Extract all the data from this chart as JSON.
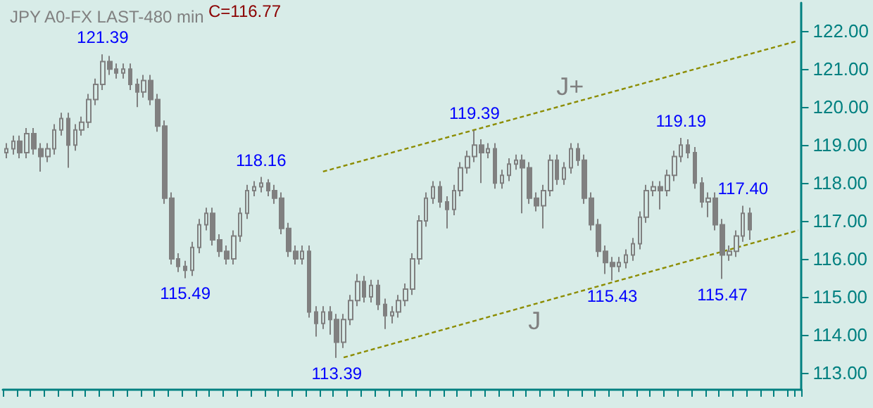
{
  "chart_data": {
    "type": "candlestick",
    "title": "JPY A0-FX LAST-480 min",
    "categories": [
      null,
      null,
      null,
      null,
      null,
      null,
      null,
      null,
      null,
      null,
      null,
      null,
      null,
      null,
      null,
      null,
      null,
      null,
      null,
      null,
      null,
      null,
      null,
      null,
      null,
      null,
      null,
      null,
      null,
      null,
      null,
      null,
      null,
      null,
      null,
      null,
      null,
      null,
      null,
      null,
      null,
      null,
      null,
      null,
      null,
      null,
      null,
      null,
      null,
      null,
      null,
      null,
      null,
      null,
      null,
      null,
      null,
      null,
      null,
      null,
      null,
      null,
      null,
      null,
      null,
      null,
      null,
      null,
      null,
      null,
      null,
      null,
      null,
      null,
      null,
      null,
      null,
      null,
      null,
      null,
      null,
      null,
      null,
      null,
      null,
      null,
      null,
      null,
      null,
      null,
      null,
      null,
      null,
      null,
      null,
      null,
      null,
      null,
      null,
      null,
      null,
      null,
      null,
      null,
      null,
      null,
      null,
      null,
      null,
      null,
      null,
      null,
      null,
      null,
      null,
      null
    ],
    "color": "#808080",
    "ohlc": [
      [
        118.8,
        119.05,
        118.65,
        118.9
      ],
      [
        118.9,
        119.25,
        118.75,
        119.1
      ],
      [
        119.1,
        119.25,
        118.65,
        118.8
      ],
      [
        118.8,
        119.45,
        118.65,
        119.3
      ],
      [
        119.3,
        119.45,
        118.75,
        118.9
      ],
      [
        118.9,
        119.05,
        118.3,
        118.7
      ],
      [
        118.7,
        119.05,
        118.55,
        118.9
      ],
      [
        118.9,
        119.55,
        118.75,
        119.4
      ],
      [
        119.4,
        119.85,
        119.25,
        119.7
      ],
      [
        119.7,
        119.85,
        118.4,
        119.0
      ],
      [
        119.0,
        119.55,
        118.85,
        119.4
      ],
      [
        119.4,
        119.75,
        119.25,
        119.6
      ],
      [
        119.6,
        120.35,
        119.45,
        120.2
      ],
      [
        120.2,
        120.75,
        120.05,
        120.6
      ],
      [
        120.6,
        121.39,
        120.45,
        121.2
      ],
      [
        121.2,
        121.35,
        120.85,
        121.0
      ],
      [
        121.0,
        121.15,
        120.75,
        120.9
      ],
      [
        120.9,
        121.15,
        120.75,
        121.0
      ],
      [
        121.0,
        121.15,
        120.45,
        120.6
      ],
      [
        120.6,
        120.75,
        120.0,
        120.4
      ],
      [
        120.4,
        120.85,
        120.25,
        120.7
      ],
      [
        120.7,
        120.85,
        120.05,
        120.2
      ],
      [
        120.2,
        120.35,
        119.35,
        119.5
      ],
      [
        119.5,
        119.65,
        117.45,
        117.6
      ],
      [
        117.6,
        117.75,
        115.85,
        116.0
      ],
      [
        116.0,
        116.15,
        115.65,
        115.8
      ],
      [
        115.8,
        115.95,
        115.49,
        115.7
      ],
      [
        115.7,
        116.45,
        115.55,
        116.3
      ],
      [
        116.3,
        117.05,
        116.15,
        116.9
      ],
      [
        116.9,
        117.35,
        116.75,
        117.2
      ],
      [
        117.2,
        117.35,
        116.35,
        116.5
      ],
      [
        116.5,
        116.65,
        116.05,
        116.2
      ],
      [
        116.2,
        116.35,
        115.85,
        116.0
      ],
      [
        116.0,
        116.75,
        115.85,
        116.6
      ],
      [
        116.6,
        117.35,
        116.45,
        117.2
      ],
      [
        117.2,
        117.95,
        117.05,
        117.8
      ],
      [
        117.8,
        118.05,
        117.65,
        117.9
      ],
      [
        117.9,
        118.16,
        117.75,
        118.0
      ],
      [
        118.0,
        118.1,
        117.65,
        117.8
      ],
      [
        117.8,
        117.95,
        117.45,
        117.6
      ],
      [
        117.6,
        117.75,
        116.65,
        116.8
      ],
      [
        116.8,
        116.95,
        116.05,
        116.2
      ],
      [
        116.2,
        116.35,
        115.85,
        116.0
      ],
      [
        116.0,
        116.35,
        115.85,
        116.2
      ],
      [
        116.2,
        116.35,
        114.45,
        114.6
      ],
      [
        114.6,
        114.75,
        113.95,
        114.3
      ],
      [
        114.3,
        114.75,
        114.15,
        114.6
      ],
      [
        114.6,
        114.75,
        114.0,
        114.4
      ],
      [
        114.4,
        114.55,
        113.39,
        113.8
      ],
      [
        113.8,
        114.55,
        113.65,
        114.4
      ],
      [
        114.4,
        115.05,
        114.25,
        114.9
      ],
      [
        114.9,
        115.6,
        114.75,
        115.4
      ],
      [
        115.4,
        115.55,
        114.85,
        115.0
      ],
      [
        115.0,
        115.45,
        114.85,
        115.3
      ],
      [
        115.3,
        115.45,
        114.65,
        114.8
      ],
      [
        114.8,
        114.95,
        114.15,
        114.5
      ],
      [
        114.5,
        114.75,
        114.3,
        114.6
      ],
      [
        114.6,
        115.05,
        114.45,
        114.9
      ],
      [
        114.9,
        115.35,
        114.75,
        115.2
      ],
      [
        115.2,
        116.15,
        115.05,
        116.0
      ],
      [
        116.0,
        117.15,
        115.85,
        117.0
      ],
      [
        117.0,
        117.75,
        116.85,
        117.6
      ],
      [
        117.6,
        118.05,
        117.45,
        117.9
      ],
      [
        117.9,
        118.05,
        117.35,
        117.5
      ],
      [
        117.5,
        117.65,
        116.8,
        117.3
      ],
      [
        117.3,
        117.95,
        117.15,
        117.8
      ],
      [
        117.8,
        118.55,
        117.65,
        118.4
      ],
      [
        118.4,
        118.85,
        118.25,
        118.7
      ],
      [
        118.7,
        119.39,
        118.55,
        119.0
      ],
      [
        119.0,
        119.15,
        118.0,
        118.8
      ],
      [
        118.8,
        119.05,
        118.65,
        118.9
      ],
      [
        118.9,
        119.05,
        117.85,
        118.0
      ],
      [
        118.0,
        118.35,
        117.85,
        118.2
      ],
      [
        118.2,
        118.65,
        118.05,
        118.5
      ],
      [
        118.5,
        118.75,
        118.35,
        118.6
      ],
      [
        118.6,
        118.75,
        117.2,
        118.4
      ],
      [
        118.4,
        118.55,
        117.45,
        117.6
      ],
      [
        117.6,
        117.75,
        117.25,
        117.4
      ],
      [
        117.4,
        117.95,
        116.8,
        117.8
      ],
      [
        117.8,
        118.75,
        117.65,
        118.6
      ],
      [
        118.6,
        118.75,
        117.95,
        118.1
      ],
      [
        118.1,
        118.55,
        117.95,
        118.4
      ],
      [
        118.4,
        119.05,
        118.25,
        118.9
      ],
      [
        118.9,
        119.05,
        118.45,
        118.6
      ],
      [
        118.6,
        118.75,
        117.45,
        117.6
      ],
      [
        117.6,
        117.75,
        116.75,
        116.9
      ],
      [
        116.9,
        117.05,
        116.05,
        116.2
      ],
      [
        116.2,
        116.35,
        115.6,
        115.9
      ],
      [
        115.9,
        116.05,
        115.43,
        115.8
      ],
      [
        115.8,
        116.05,
        115.65,
        115.9
      ],
      [
        115.9,
        116.25,
        115.75,
        116.1
      ],
      [
        116.1,
        116.55,
        115.95,
        116.4
      ],
      [
        116.4,
        117.25,
        116.25,
        117.1
      ],
      [
        117.1,
        117.95,
        116.95,
        117.8
      ],
      [
        117.8,
        118.05,
        117.65,
        117.9
      ],
      [
        117.9,
        118.05,
        117.3,
        117.8
      ],
      [
        117.8,
        118.35,
        117.65,
        118.2
      ],
      [
        118.2,
        118.85,
        118.05,
        118.7
      ],
      [
        118.7,
        119.19,
        118.55,
        119.0
      ],
      [
        119.0,
        119.15,
        118.65,
        118.8
      ],
      [
        118.8,
        118.95,
        117.85,
        118.0
      ],
      [
        118.0,
        118.15,
        117.35,
        117.5
      ],
      [
        117.5,
        117.75,
        117.1,
        117.6
      ],
      [
        117.6,
        117.75,
        116.75,
        116.9
      ],
      [
        116.9,
        117.05,
        115.47,
        116.1
      ],
      [
        116.1,
        116.35,
        115.95,
        116.2
      ],
      [
        116.2,
        116.75,
        116.05,
        116.6
      ],
      [
        116.6,
        117.4,
        116.45,
        117.2
      ],
      [
        117.2,
        117.35,
        116.5,
        116.77
      ],
      null,
      null,
      null,
      null,
      null,
      null,
      null
    ],
    "series": [
      {
        "name": "J+",
        "type": "line",
        "color": "#8c8c00",
        "line_style": "dashed",
        "values": [
          null,
          null,
          null,
          null,
          null,
          null,
          null,
          null,
          null,
          null,
          null,
          null,
          null,
          null,
          null,
          null,
          null,
          null,
          null,
          null,
          null,
          null,
          null,
          null,
          null,
          null,
          null,
          null,
          null,
          null,
          null,
          null,
          null,
          null,
          null,
          null,
          null,
          null,
          null,
          null,
          null,
          null,
          null,
          null,
          null,
          null,
          118.3,
          null,
          null,
          null,
          null,
          null,
          null,
          null,
          null,
          null,
          null,
          null,
          null,
          null,
          null,
          null,
          null,
          null,
          null,
          null,
          null,
          null,
          null,
          null,
          null,
          null,
          null,
          null,
          null,
          null,
          null,
          null,
          null,
          null,
          null,
          null,
          null,
          null,
          null,
          null,
          null,
          null,
          null,
          null,
          null,
          null,
          null,
          null,
          null,
          null,
          null,
          null,
          null,
          null,
          null,
          null,
          null,
          null,
          null,
          null,
          null,
          null,
          null,
          null,
          null,
          null,
          null,
          null,
          null,
          121.75
        ]
      },
      {
        "name": "J",
        "type": "line",
        "color": "#8c8c00",
        "line_style": "dashed",
        "values": [
          null,
          null,
          null,
          null,
          null,
          null,
          null,
          null,
          null,
          null,
          null,
          null,
          null,
          null,
          null,
          null,
          null,
          null,
          null,
          null,
          null,
          null,
          null,
          null,
          null,
          null,
          null,
          null,
          null,
          null,
          null,
          null,
          null,
          null,
          null,
          null,
          null,
          null,
          null,
          null,
          null,
          null,
          null,
          null,
          null,
          null,
          null,
          null,
          null,
          113.4,
          null,
          null,
          null,
          null,
          null,
          null,
          null,
          null,
          null,
          null,
          null,
          null,
          null,
          null,
          null,
          null,
          null,
          null,
          null,
          null,
          null,
          null,
          null,
          null,
          null,
          null,
          null,
          null,
          null,
          null,
          null,
          null,
          null,
          null,
          null,
          null,
          null,
          null,
          null,
          null,
          null,
          null,
          null,
          null,
          null,
          null,
          null,
          null,
          null,
          null,
          null,
          null,
          null,
          null,
          null,
          null,
          null,
          null,
          null,
          null,
          null,
          null,
          null,
          null,
          null,
          116.75
        ]
      }
    ],
    "annotations": [
      "C=116.77",
      {
        "text": "121.39",
        "y": 121.39
      },
      {
        "text": "115.49",
        "y": 115.49
      },
      {
        "text": "118.16",
        "y": 118.16
      },
      {
        "text": "113.39",
        "y": 113.39
      },
      {
        "text": "119.39",
        "y": 119.39
      },
      {
        "text": "115.43",
        "y": 115.43
      },
      {
        "text": "119.19",
        "y": 119.19
      },
      {
        "text": "115.47",
        "y": 115.47
      },
      {
        "text": "117.40",
        "y": 117.4
      }
    ],
    "ylim": [
      112.55,
      122.75
    ],
    "yticks": [
      {
        "value": 113,
        "label": "113.00"
      },
      {
        "value": 114,
        "label": "114.00"
      },
      {
        "value": 115,
        "label": "115.00"
      },
      {
        "value": 116,
        "label": "116.00"
      },
      {
        "value": 117,
        "label": "117.00"
      },
      {
        "value": 118,
        "label": "118.00"
      },
      {
        "value": 119,
        "label": "119.00"
      },
      {
        "value": 120,
        "label": "120.00"
      },
      {
        "value": 121,
        "label": "121.00"
      },
      {
        "value": 122,
        "label": "122.00"
      }
    ],
    "tick_labels": "y",
    "grid": false,
    "legend": false
  }
}
